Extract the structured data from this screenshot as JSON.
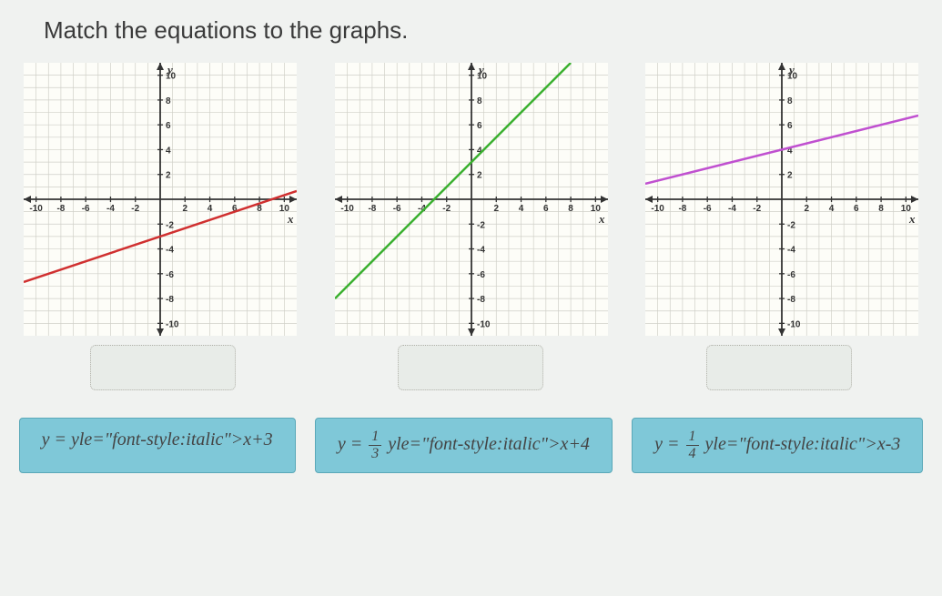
{
  "title": "Match the equations to the graphs.",
  "axis": {
    "y_label": "y",
    "x_label": "x",
    "xlim": [
      -11,
      11
    ],
    "ylim": [
      -11,
      11
    ],
    "ticks": [
      -10,
      -8,
      -6,
      -4,
      -2,
      2,
      4,
      6,
      8,
      10
    ],
    "grid_color": "#d0d0c8",
    "axis_color": "#333333",
    "tick_label_fontsize": 10,
    "axis_label_fontsize": 13,
    "background_color": "#fdfdf8"
  },
  "graphs": [
    {
      "name": "graph-1",
      "line_color": "#d03030",
      "line_width": 2.5,
      "equation_true": "y = (1/3)x - 3",
      "points": [
        [
          -11,
          -6.6667
        ],
        [
          11,
          0.6667
        ]
      ]
    },
    {
      "name": "graph-2",
      "line_color": "#3bb030",
      "line_width": 2.5,
      "equation_true": "y = x + 3",
      "points": [
        [
          -11,
          -8
        ],
        [
          8,
          11
        ]
      ]
    },
    {
      "name": "graph-3",
      "line_color": "#c050d0",
      "line_width": 2.5,
      "equation_true": "y = (1/4)x + 4",
      "points": [
        [
          -11,
          1.25
        ],
        [
          11,
          6.75
        ]
      ]
    }
  ],
  "chips": [
    {
      "name": "chip-eq1",
      "display_tokens": [
        "y = x+3"
      ]
    },
    {
      "name": "chip-eq2",
      "display_tokens": [
        "y = ",
        {
          "frac": [
            "1",
            "3"
          ]
        },
        " x+4"
      ]
    },
    {
      "name": "chip-eq3",
      "display_tokens": [
        "y = ",
        {
          "frac": [
            "1",
            "4"
          ]
        },
        " x-3"
      ]
    }
  ],
  "dropzones": [
    {
      "name": "dropzone-1"
    },
    {
      "name": "dropzone-2"
    },
    {
      "name": "dropzone-3"
    }
  ]
}
